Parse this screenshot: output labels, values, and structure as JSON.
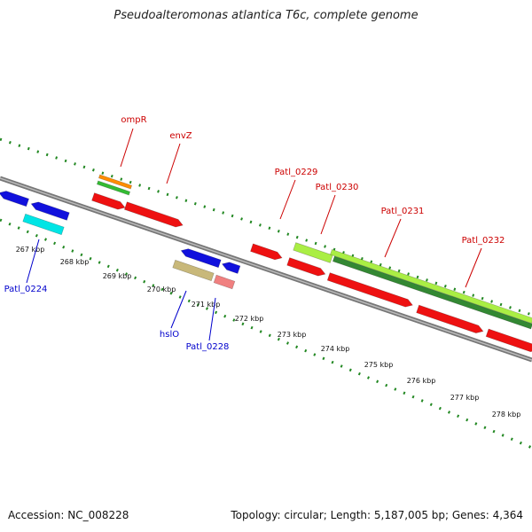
{
  "title": "Pseudoalteromonas atlantica T6c, complete genome",
  "footer": {
    "accession": "Accession: NC_008228",
    "topology": "Topology: circular; Length: 5,187,005 bp; Genes: 4,364"
  },
  "scale": {
    "ticks": [
      "267 kbp",
      "268 kbp",
      "269 kbp",
      "270 kbp",
      "271 kbp",
      "272 kbp",
      "273 kbp",
      "274 kbp",
      "275 kbp",
      "276 kbp",
      "277 kbp",
      "278 kbp"
    ]
  },
  "gene_labels": [
    {
      "name": "ompR",
      "color": "#cc0000"
    },
    {
      "name": "envZ",
      "color": "#cc0000"
    },
    {
      "name": "Patl_0229",
      "color": "#cc0000"
    },
    {
      "name": "Patl_0230",
      "color": "#cc0000"
    },
    {
      "name": "Patl_0231",
      "color": "#cc0000"
    },
    {
      "name": "Patl_0232",
      "color": "#cc0000"
    },
    {
      "name": "Patl_0224",
      "color": "#0000cc"
    },
    {
      "name": "hslO",
      "color": "#0000cc"
    },
    {
      "name": "Patl_0228",
      "color": "#0000cc"
    }
  ],
  "feature_colors": {
    "forward_cds": "#ee1111",
    "reverse_cds": "#1111dd",
    "orange": "#ff8c00",
    "green": "#33bb33",
    "cyan": "#00e5e5",
    "khaki": "#c8b87a",
    "pink": "#f08080",
    "lime": "#aaee44",
    "dark_green": "#338833",
    "backbone": "#888888"
  }
}
